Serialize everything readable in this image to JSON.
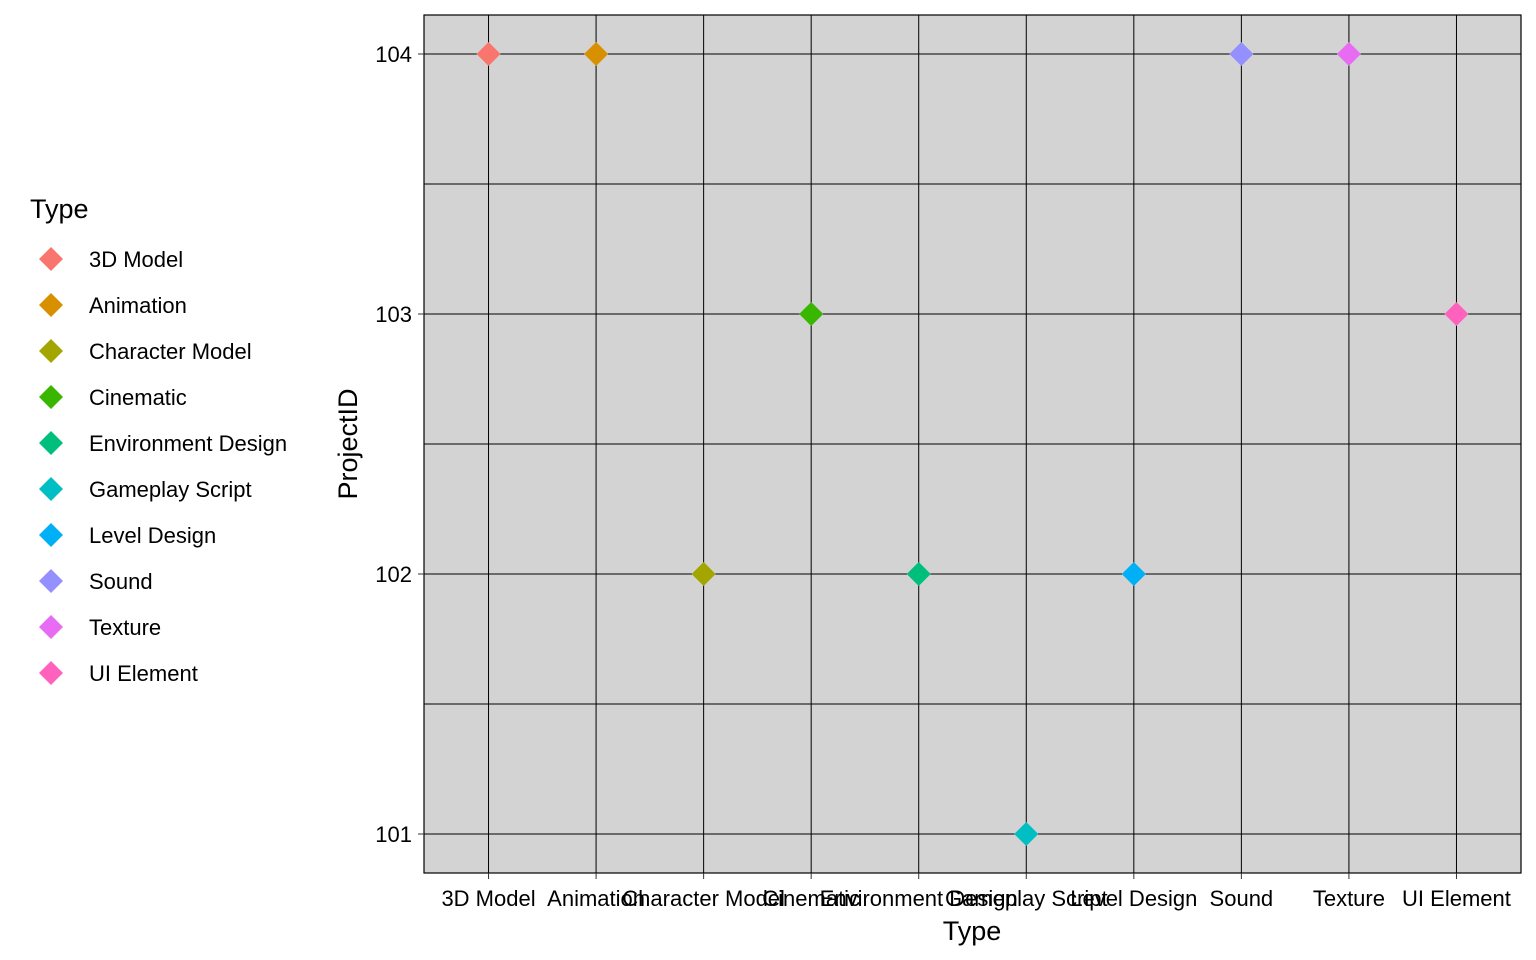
{
  "chart_data": {
    "type": "scatter",
    "xlabel": "Type",
    "ylabel": "ProjectID",
    "categories": [
      "3D Model",
      "Animation",
      "Character Model",
      "Cinematic",
      "Environment Design",
      "Gameplay Script",
      "Level Design",
      "Sound",
      "Texture",
      "UI Element"
    ],
    "y_ticks": [
      "101",
      "102",
      "103",
      "104"
    ],
    "ylim": [
      100.85,
      104.15
    ],
    "grid": true,
    "legend": {
      "title": "Type",
      "position": "left",
      "items": [
        "3D Model",
        "Animation",
        "Character Model",
        "Cinematic",
        "Environment Design",
        "Gameplay Script",
        "Level Design",
        "Sound",
        "Texture",
        "UI Element"
      ]
    },
    "colors": [
      "#F8766D",
      "#D89000",
      "#A3A500",
      "#39B600",
      "#00BF7D",
      "#00BFC4",
      "#00B0F6",
      "#9590FF",
      "#E76BF3",
      "#FF62BC"
    ],
    "panel_background": "#D3D3D3",
    "points": [
      {
        "x": "3D Model",
        "y": 104
      },
      {
        "x": "Animation",
        "y": 104
      },
      {
        "x": "Character Model",
        "y": 102
      },
      {
        "x": "Cinematic",
        "y": 103
      },
      {
        "x": "Environment Design",
        "y": 102
      },
      {
        "x": "Gameplay Script",
        "y": 101
      },
      {
        "x": "Level Design",
        "y": 102
      },
      {
        "x": "Sound",
        "y": 104
      },
      {
        "x": "Texture",
        "y": 104
      },
      {
        "x": "UI Element",
        "y": 103
      }
    ]
  }
}
